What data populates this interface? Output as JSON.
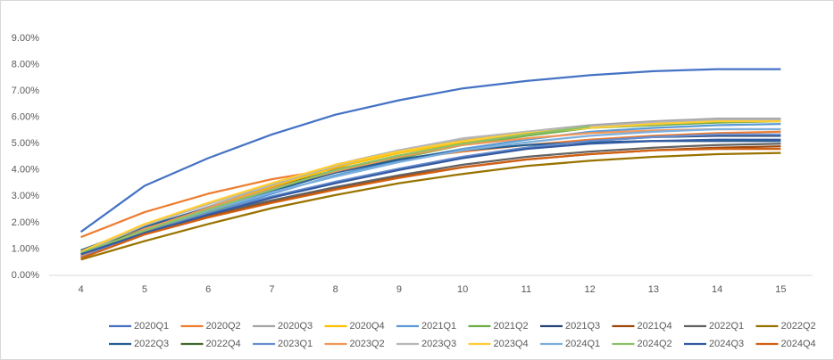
{
  "chart_data": {
    "type": "line",
    "x": [
      4,
      5,
      6,
      7,
      8,
      9,
      10,
      11,
      12,
      13,
      14,
      15
    ],
    "xlim": [
      3.5,
      15.5
    ],
    "xticks": [
      4,
      5,
      6,
      7,
      8,
      9,
      10,
      11,
      12,
      13,
      14,
      15
    ],
    "ylim": [
      0,
      9
    ],
    "yticks": [
      {
        "value": 0,
        "label": "0.00%"
      },
      {
        "value": 1,
        "label": "1.00%"
      },
      {
        "value": 2,
        "label": "2.00%"
      },
      {
        "value": 3,
        "label": "3.00%"
      },
      {
        "value": 4,
        "label": "4.00%"
      },
      {
        "value": 5,
        "label": "5.00%"
      },
      {
        "value": 6,
        "label": "6.00%"
      },
      {
        "value": 7,
        "label": "7.00%"
      },
      {
        "value": 8,
        "label": "8.00%"
      },
      {
        "value": 9,
        "label": "9.00%"
      }
    ],
    "grid": false,
    "legend": "bottom",
    "series": [
      {
        "name": "2020Q1",
        "color": "#4472c4",
        "values": [
          1.65,
          3.4,
          4.45,
          5.35,
          6.1,
          6.65,
          7.1,
          7.38,
          7.6,
          7.75,
          7.83,
          7.83
        ]
      },
      {
        "name": "2020Q2",
        "color": "#ed7d31",
        "values": [
          1.45,
          2.4,
          3.1,
          3.65,
          4.05,
          4.4,
          4.7,
          4.95,
          5.15,
          5.3,
          5.4,
          5.45
        ]
      },
      {
        "name": "2020Q3",
        "color": "#a5a5a5",
        "values": [
          0.9,
          1.8,
          2.6,
          3.4,
          4.2,
          4.75,
          5.15,
          5.45,
          5.7,
          5.85,
          5.95,
          5.95
        ]
      },
      {
        "name": "2020Q4",
        "color": "#ffc000",
        "values": [
          0.85,
          1.75,
          2.55,
          3.35,
          4.1,
          4.65,
          5.05,
          5.35,
          5.6,
          5.75,
          5.85,
          5.9
        ]
      },
      {
        "name": "2021Q1",
        "color": "#5b9bd5",
        "values": [
          0.8,
          1.6,
          2.35,
          3.1,
          3.8,
          4.35,
          4.8,
          5.15,
          5.45,
          5.6,
          5.7,
          5.75
        ]
      },
      {
        "name": "2021Q2",
        "color": "#70ad47",
        "values": [
          0.95,
          1.7,
          2.4,
          3.2,
          3.95,
          4.45,
          4.95,
          5.3,
          5.6,
          5.7,
          5.8,
          5.85
        ]
      },
      {
        "name": "2021Q3",
        "color": "#264478",
        "values": [
          0.9,
          1.65,
          2.3,
          2.95,
          3.55,
          4.05,
          4.5,
          4.85,
          5.1,
          5.25,
          5.3,
          5.3
        ]
      },
      {
        "name": "2021Q4",
        "color": "#9e480e",
        "values": [
          0.7,
          1.6,
          2.25,
          2.8,
          3.3,
          3.75,
          4.1,
          4.4,
          4.6,
          4.75,
          4.85,
          4.9
        ]
      },
      {
        "name": "2022Q1",
        "color": "#636363",
        "values": [
          0.75,
          1.65,
          2.3,
          2.85,
          3.35,
          3.8,
          4.2,
          4.5,
          4.7,
          4.85,
          4.95,
          5.0
        ]
      },
      {
        "name": "2022Q2",
        "color": "#997300",
        "values": [
          0.6,
          1.3,
          1.95,
          2.55,
          3.05,
          3.5,
          3.85,
          4.15,
          4.35,
          4.5,
          4.6,
          4.65
        ]
      },
      {
        "name": "2022Q3",
        "color": "#255e91",
        "values": [
          0.95,
          1.85,
          2.55,
          3.2,
          3.9,
          4.4,
          4.75,
          4.95,
          5.05,
          5.1,
          5.1,
          5.1
        ]
      },
      {
        "name": "2022Q4",
        "color": "#43682b",
        "values": [
          0.85,
          1.75,
          2.5,
          3.3,
          4.0,
          4.55,
          null,
          null,
          null,
          null,
          null,
          null
        ]
      },
      {
        "name": "2023Q1",
        "color": "#698ed0",
        "values": [
          0.7,
          1.6,
          2.35,
          3.0,
          3.55,
          4.05,
          4.5,
          4.85,
          5.1,
          5.25,
          5.35,
          5.35
        ]
      },
      {
        "name": "2023Q2",
        "color": "#f1975a",
        "values": [
          0.75,
          1.75,
          2.55,
          3.3,
          3.95,
          4.5,
          4.95,
          5.2,
          5.4,
          5.5,
          5.55,
          5.55
        ]
      },
      {
        "name": "2023Q3",
        "color": "#b7b7b7",
        "values": [
          0.85,
          1.9,
          2.7,
          3.45,
          4.15,
          4.75,
          5.2,
          5.45,
          5.65,
          5.8,
          5.9,
          5.9
        ]
      },
      {
        "name": "2023Q4",
        "color": "#ffcd33",
        "values": [
          0.9,
          1.95,
          2.75,
          3.5,
          4.2,
          4.7,
          5.1,
          5.4,
          5.6,
          5.75,
          5.85,
          5.85
        ]
      },
      {
        "name": "2024Q1",
        "color": "#7cafdd",
        "values": [
          0.8,
          1.7,
          2.45,
          3.15,
          3.75,
          4.3,
          4.75,
          5.05,
          5.3,
          5.45,
          5.55,
          5.55
        ]
      },
      {
        "name": "2024Q2",
        "color": "#8cc168",
        "values": [
          0.85,
          1.7,
          2.5,
          3.25,
          4.0,
          4.55,
          5.0,
          5.35,
          5.65,
          null,
          null,
          null
        ]
      },
      {
        "name": "2024Q3",
        "color": "#335aa1",
        "values": [
          0.8,
          1.6,
          2.3,
          2.95,
          3.5,
          4.0,
          4.45,
          4.8,
          5.0,
          5.1,
          5.15,
          5.15
        ]
      },
      {
        "name": "2024Q4",
        "color": "#d26012",
        "values": [
          0.65,
          1.55,
          2.2,
          2.75,
          3.25,
          3.7,
          4.1,
          4.4,
          4.6,
          4.75,
          4.8,
          4.8
        ]
      }
    ]
  }
}
